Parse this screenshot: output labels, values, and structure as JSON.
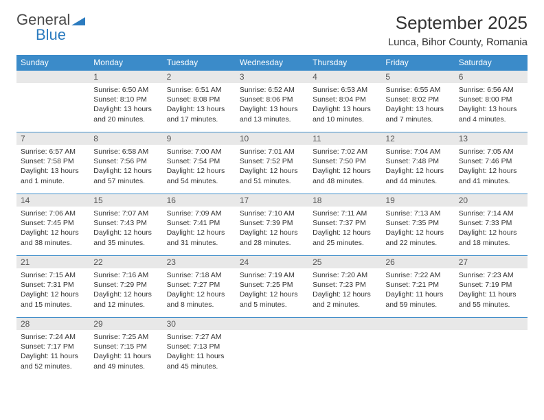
{
  "brand": {
    "part1": "General",
    "part2": "Blue"
  },
  "title": "September 2025",
  "location": "Lunca, Bihor County, Romania",
  "colors": {
    "header_bg": "#3b8bc9",
    "header_text": "#ffffff",
    "daynum_bg": "#e8e8e8",
    "daynum_text": "#555555",
    "cell_text": "#333333",
    "rule": "#3b8bc9",
    "brand_blue": "#2b7bbf",
    "brand_gray": "#4a4a4a"
  },
  "typography": {
    "body_fontsize": 10.5,
    "daynum_fontsize": 12,
    "header_fontsize": 12,
    "title_fontsize": 26,
    "location_fontsize": 15
  },
  "weekdays": [
    "Sunday",
    "Monday",
    "Tuesday",
    "Wednesday",
    "Thursday",
    "Friday",
    "Saturday"
  ],
  "weeks": [
    [
      null,
      {
        "n": "1",
        "sr": "Sunrise: 6:50 AM",
        "ss": "Sunset: 8:10 PM",
        "d1": "Daylight: 13 hours",
        "d2": "and 20 minutes."
      },
      {
        "n": "2",
        "sr": "Sunrise: 6:51 AM",
        "ss": "Sunset: 8:08 PM",
        "d1": "Daylight: 13 hours",
        "d2": "and 17 minutes."
      },
      {
        "n": "3",
        "sr": "Sunrise: 6:52 AM",
        "ss": "Sunset: 8:06 PM",
        "d1": "Daylight: 13 hours",
        "d2": "and 13 minutes."
      },
      {
        "n": "4",
        "sr": "Sunrise: 6:53 AM",
        "ss": "Sunset: 8:04 PM",
        "d1": "Daylight: 13 hours",
        "d2": "and 10 minutes."
      },
      {
        "n": "5",
        "sr": "Sunrise: 6:55 AM",
        "ss": "Sunset: 8:02 PM",
        "d1": "Daylight: 13 hours",
        "d2": "and 7 minutes."
      },
      {
        "n": "6",
        "sr": "Sunrise: 6:56 AM",
        "ss": "Sunset: 8:00 PM",
        "d1": "Daylight: 13 hours",
        "d2": "and 4 minutes."
      }
    ],
    [
      {
        "n": "7",
        "sr": "Sunrise: 6:57 AM",
        "ss": "Sunset: 7:58 PM",
        "d1": "Daylight: 13 hours",
        "d2": "and 1 minute."
      },
      {
        "n": "8",
        "sr": "Sunrise: 6:58 AM",
        "ss": "Sunset: 7:56 PM",
        "d1": "Daylight: 12 hours",
        "d2": "and 57 minutes."
      },
      {
        "n": "9",
        "sr": "Sunrise: 7:00 AM",
        "ss": "Sunset: 7:54 PM",
        "d1": "Daylight: 12 hours",
        "d2": "and 54 minutes."
      },
      {
        "n": "10",
        "sr": "Sunrise: 7:01 AM",
        "ss": "Sunset: 7:52 PM",
        "d1": "Daylight: 12 hours",
        "d2": "and 51 minutes."
      },
      {
        "n": "11",
        "sr": "Sunrise: 7:02 AM",
        "ss": "Sunset: 7:50 PM",
        "d1": "Daylight: 12 hours",
        "d2": "and 48 minutes."
      },
      {
        "n": "12",
        "sr": "Sunrise: 7:04 AM",
        "ss": "Sunset: 7:48 PM",
        "d1": "Daylight: 12 hours",
        "d2": "and 44 minutes."
      },
      {
        "n": "13",
        "sr": "Sunrise: 7:05 AM",
        "ss": "Sunset: 7:46 PM",
        "d1": "Daylight: 12 hours",
        "d2": "and 41 minutes."
      }
    ],
    [
      {
        "n": "14",
        "sr": "Sunrise: 7:06 AM",
        "ss": "Sunset: 7:45 PM",
        "d1": "Daylight: 12 hours",
        "d2": "and 38 minutes."
      },
      {
        "n": "15",
        "sr": "Sunrise: 7:07 AM",
        "ss": "Sunset: 7:43 PM",
        "d1": "Daylight: 12 hours",
        "d2": "and 35 minutes."
      },
      {
        "n": "16",
        "sr": "Sunrise: 7:09 AM",
        "ss": "Sunset: 7:41 PM",
        "d1": "Daylight: 12 hours",
        "d2": "and 31 minutes."
      },
      {
        "n": "17",
        "sr": "Sunrise: 7:10 AM",
        "ss": "Sunset: 7:39 PM",
        "d1": "Daylight: 12 hours",
        "d2": "and 28 minutes."
      },
      {
        "n": "18",
        "sr": "Sunrise: 7:11 AM",
        "ss": "Sunset: 7:37 PM",
        "d1": "Daylight: 12 hours",
        "d2": "and 25 minutes."
      },
      {
        "n": "19",
        "sr": "Sunrise: 7:13 AM",
        "ss": "Sunset: 7:35 PM",
        "d1": "Daylight: 12 hours",
        "d2": "and 22 minutes."
      },
      {
        "n": "20",
        "sr": "Sunrise: 7:14 AM",
        "ss": "Sunset: 7:33 PM",
        "d1": "Daylight: 12 hours",
        "d2": "and 18 minutes."
      }
    ],
    [
      {
        "n": "21",
        "sr": "Sunrise: 7:15 AM",
        "ss": "Sunset: 7:31 PM",
        "d1": "Daylight: 12 hours",
        "d2": "and 15 minutes."
      },
      {
        "n": "22",
        "sr": "Sunrise: 7:16 AM",
        "ss": "Sunset: 7:29 PM",
        "d1": "Daylight: 12 hours",
        "d2": "and 12 minutes."
      },
      {
        "n": "23",
        "sr": "Sunrise: 7:18 AM",
        "ss": "Sunset: 7:27 PM",
        "d1": "Daylight: 12 hours",
        "d2": "and 8 minutes."
      },
      {
        "n": "24",
        "sr": "Sunrise: 7:19 AM",
        "ss": "Sunset: 7:25 PM",
        "d1": "Daylight: 12 hours",
        "d2": "and 5 minutes."
      },
      {
        "n": "25",
        "sr": "Sunrise: 7:20 AM",
        "ss": "Sunset: 7:23 PM",
        "d1": "Daylight: 12 hours",
        "d2": "and 2 minutes."
      },
      {
        "n": "26",
        "sr": "Sunrise: 7:22 AM",
        "ss": "Sunset: 7:21 PM",
        "d1": "Daylight: 11 hours",
        "d2": "and 59 minutes."
      },
      {
        "n": "27",
        "sr": "Sunrise: 7:23 AM",
        "ss": "Sunset: 7:19 PM",
        "d1": "Daylight: 11 hours",
        "d2": "and 55 minutes."
      }
    ],
    [
      {
        "n": "28",
        "sr": "Sunrise: 7:24 AM",
        "ss": "Sunset: 7:17 PM",
        "d1": "Daylight: 11 hours",
        "d2": "and 52 minutes."
      },
      {
        "n": "29",
        "sr": "Sunrise: 7:25 AM",
        "ss": "Sunset: 7:15 PM",
        "d1": "Daylight: 11 hours",
        "d2": "and 49 minutes."
      },
      {
        "n": "30",
        "sr": "Sunrise: 7:27 AM",
        "ss": "Sunset: 7:13 PM",
        "d1": "Daylight: 11 hours",
        "d2": "and 45 minutes."
      },
      null,
      null,
      null,
      null
    ]
  ]
}
